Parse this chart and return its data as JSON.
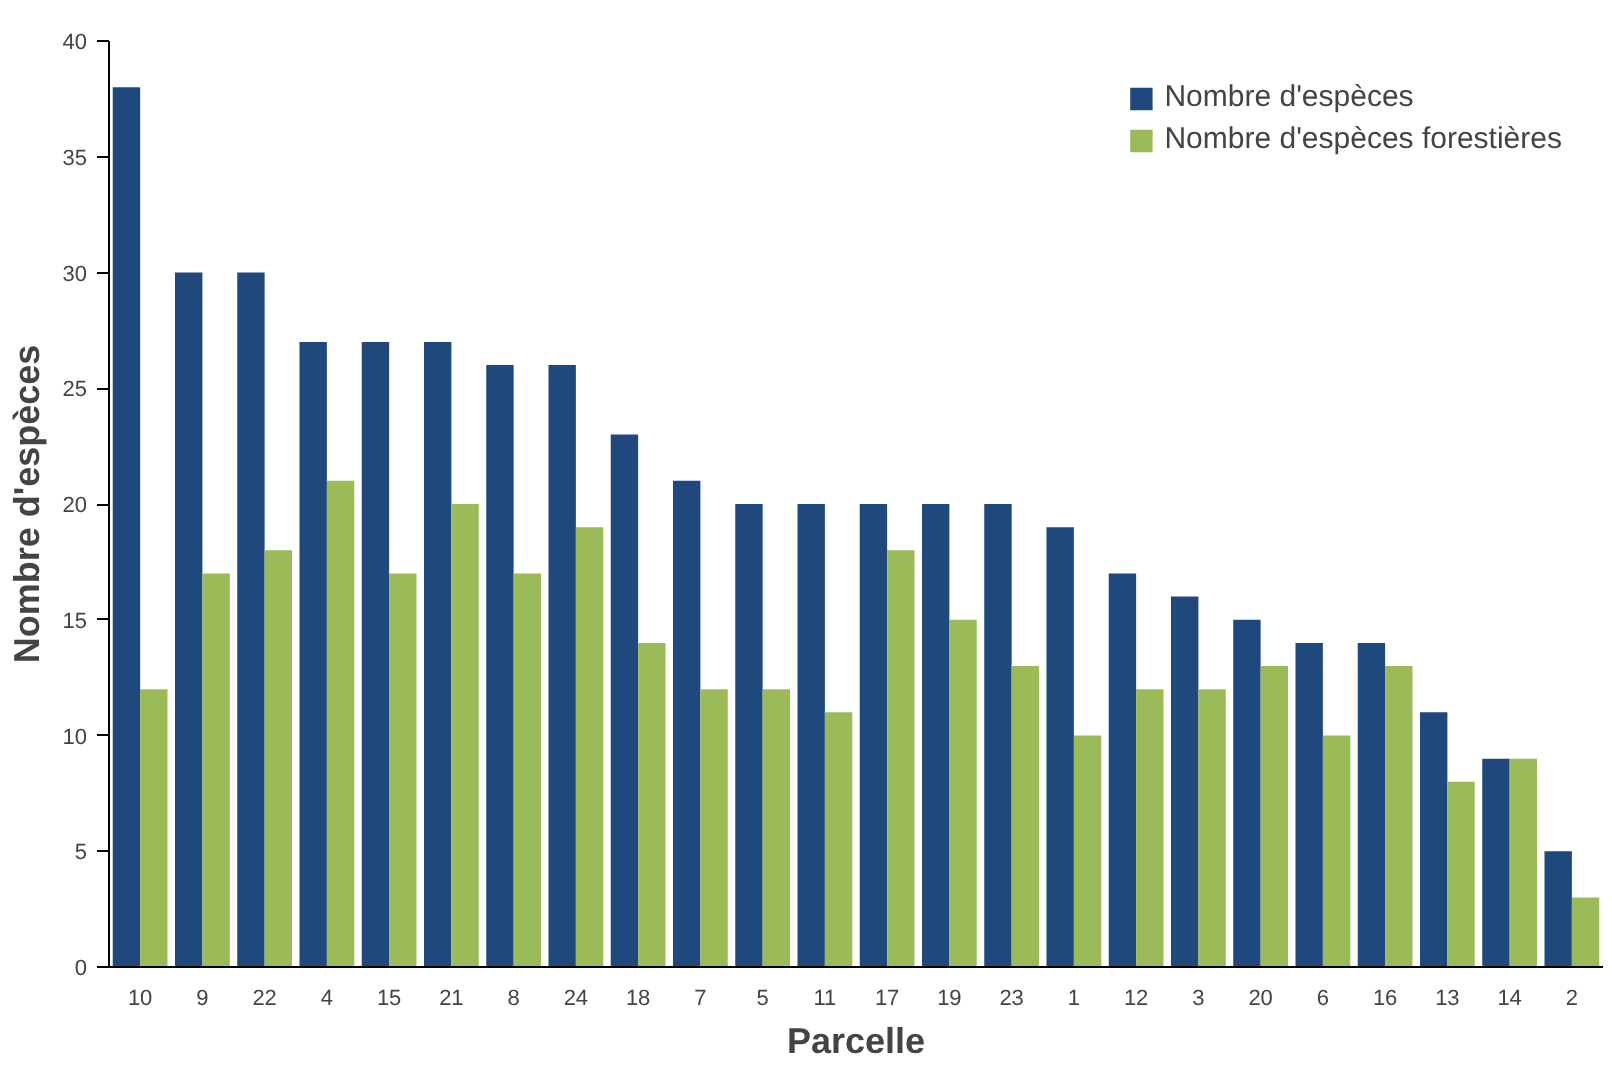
{
  "chart_data": {
    "type": "bar",
    "xlabel": "Parcelle",
    "ylabel": "Nombre d'espèces",
    "categories": [
      "10",
      "9",
      "22",
      "4",
      "15",
      "21",
      "8",
      "24",
      "18",
      "7",
      "5",
      "11",
      "17",
      "19",
      "23",
      "1",
      "12",
      "3",
      "20",
      "6",
      "16",
      "13",
      "14",
      "2"
    ],
    "series": [
      {
        "name": "Nombre d'espèces",
        "color": "#1f497d",
        "values": [
          38,
          30,
          30,
          27,
          27,
          27,
          26,
          26,
          23,
          21,
          20,
          20,
          20,
          20,
          20,
          19,
          17,
          16,
          15,
          14,
          14,
          11,
          9,
          5
        ]
      },
      {
        "name": "Nombre d'espèces forestières",
        "color": "#9bbb59",
        "values": [
          12,
          17,
          18,
          21,
          17,
          20,
          17,
          19,
          14,
          12,
          12,
          11,
          18,
          15,
          13,
          10,
          12,
          12,
          13,
          10,
          13,
          8,
          9,
          3
        ]
      }
    ],
    "ylim": [
      0,
      40
    ],
    "yticks": [
      0,
      5,
      10,
      15,
      20,
      25,
      30,
      35,
      40
    ],
    "grid": false,
    "legend": "top right"
  }
}
